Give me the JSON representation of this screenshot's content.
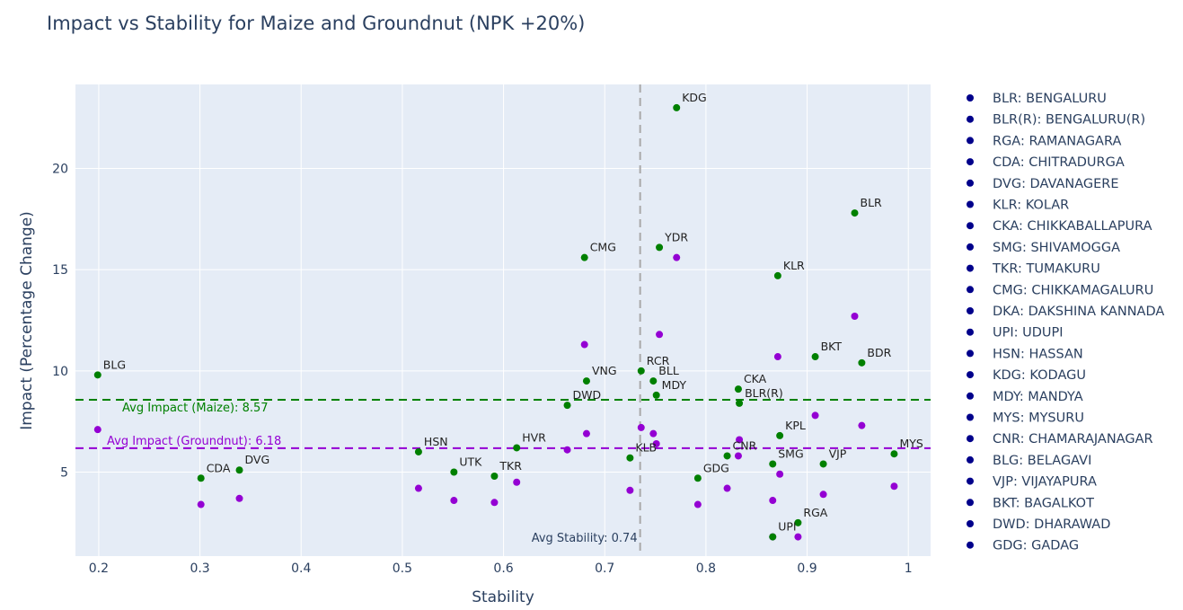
{
  "chart_data": {
    "type": "scatter",
    "title": "Impact vs Stability for Maize and Groundnut (NPK +20%)",
    "xlabel": "Stability",
    "ylabel": "Impact (Percentage Change)",
    "xlim": [
      0.177,
      1.022
    ],
    "ylim": [
      0.85,
      24.15
    ],
    "xticks": [
      0.2,
      0.3,
      0.4,
      0.5,
      0.6,
      0.7,
      0.8,
      0.9,
      1
    ],
    "xtick_labels": [
      "0.2",
      "0.3",
      "0.4",
      "0.5",
      "0.6",
      "0.7",
      "0.8",
      "0.9",
      "1"
    ],
    "yticks": [
      5,
      10,
      15,
      20
    ],
    "ytick_labels": [
      "5",
      "10",
      "15",
      "20"
    ],
    "grid": true,
    "legend_position": "right",
    "colors": {
      "maize": "#008000",
      "groundnut": "#9400d3",
      "legend_marker": "#00008b",
      "plot_bg": "#e5ecf6",
      "grid": "#ffffff",
      "avg_stability_line": "#a9a9a9"
    },
    "series": [
      {
        "key": "maize",
        "points": [
          {
            "code": "BLR",
            "x": 0.947,
            "y": 17.8
          },
          {
            "code": "BLR(R)",
            "x": 0.833,
            "y": 8.4
          },
          {
            "code": "RGA",
            "x": 0.891,
            "y": 2.5
          },
          {
            "code": "CDA",
            "x": 0.301,
            "y": 4.7
          },
          {
            "code": "DVG",
            "x": 0.339,
            "y": 5.1
          },
          {
            "code": "KLR",
            "x": 0.871,
            "y": 14.7
          },
          {
            "code": "CKA",
            "x": 0.832,
            "y": 9.1
          },
          {
            "code": "SMG",
            "x": 0.866,
            "y": 5.4
          },
          {
            "code": "TKR",
            "x": 0.591,
            "y": 4.8
          },
          {
            "code": "CMG",
            "x": 0.68,
            "y": 15.6
          },
          {
            "code": "UPI",
            "x": 0.866,
            "y": 1.8
          },
          {
            "code": "HSN",
            "x": 0.516,
            "y": 6.0
          },
          {
            "code": "KDG",
            "x": 0.771,
            "y": 23.0
          },
          {
            "code": "MDY",
            "x": 0.751,
            "y": 8.8
          },
          {
            "code": "MYS",
            "x": 0.986,
            "y": 5.9
          },
          {
            "code": "CNR",
            "x": 0.821,
            "y": 5.8
          },
          {
            "code": "BLG",
            "x": 0.199,
            "y": 9.8
          },
          {
            "code": "VJP",
            "x": 0.916,
            "y": 5.4
          },
          {
            "code": "BKT",
            "x": 0.908,
            "y": 10.7
          },
          {
            "code": "DWD",
            "x": 0.663,
            "y": 8.3
          },
          {
            "code": "GDG",
            "x": 0.792,
            "y": 4.7
          },
          {
            "code": "YDR",
            "x": 0.754,
            "y": 16.1
          },
          {
            "code": "RCR",
            "x": 0.736,
            "y": 10.0
          },
          {
            "code": "BLL",
            "x": 0.748,
            "y": 9.5
          },
          {
            "code": "KLB",
            "x": 0.725,
            "y": 5.7
          },
          {
            "code": "BDR",
            "x": 0.954,
            "y": 10.4
          },
          {
            "code": "VNG",
            "x": 0.682,
            "y": 9.5
          },
          {
            "code": "UTK",
            "x": 0.551,
            "y": 5.0
          },
          {
            "code": "HVR",
            "x": 0.613,
            "y": 6.2
          },
          {
            "code": "KPL",
            "x": 0.873,
            "y": 6.8
          }
        ]
      },
      {
        "key": "groundnut",
        "points": [
          {
            "x": 0.947,
            "y": 12.7
          },
          {
            "x": 0.833,
            "y": 6.6
          },
          {
            "x": 0.891,
            "y": 1.8
          },
          {
            "x": 0.301,
            "y": 3.4
          },
          {
            "x": 0.339,
            "y": 3.7
          },
          {
            "x": 0.871,
            "y": 10.7
          },
          {
            "x": 0.832,
            "y": 5.8
          },
          {
            "x": 0.866,
            "y": 3.6
          },
          {
            "x": 0.591,
            "y": 3.5
          },
          {
            "x": 0.68,
            "y": 11.3
          },
          {
            "x": 0.866,
            "y": 1.8
          },
          {
            "x": 0.516,
            "y": 4.2
          },
          {
            "x": 0.771,
            "y": 15.6
          },
          {
            "x": 0.751,
            "y": 6.4
          },
          {
            "x": 0.986,
            "y": 4.3
          },
          {
            "x": 0.821,
            "y": 4.2
          },
          {
            "x": 0.199,
            "y": 7.1
          },
          {
            "x": 0.916,
            "y": 3.9
          },
          {
            "x": 0.908,
            "y": 7.8
          },
          {
            "x": 0.663,
            "y": 6.1
          },
          {
            "x": 0.792,
            "y": 3.4
          },
          {
            "x": 0.754,
            "y": 11.8
          },
          {
            "x": 0.736,
            "y": 7.2
          },
          {
            "x": 0.748,
            "y": 6.9
          },
          {
            "x": 0.725,
            "y": 4.1
          },
          {
            "x": 0.954,
            "y": 7.3
          },
          {
            "x": 0.682,
            "y": 6.9
          },
          {
            "x": 0.551,
            "y": 3.6
          },
          {
            "x": 0.613,
            "y": 4.5
          },
          {
            "x": 0.873,
            "y": 4.9
          }
        ]
      }
    ],
    "reference_lines": [
      {
        "key": "avg_maize",
        "axis": "y",
        "value": 8.57,
        "label": "Avg Impact (Maize): 8.57",
        "color": "#008000"
      },
      {
        "key": "avg_groundnut",
        "axis": "y",
        "value": 6.18,
        "label": "Avg Impact (Groundnut): 6.18",
        "color": "#9400d3"
      },
      {
        "key": "avg_stability",
        "axis": "x",
        "value": 0.735,
        "label": "Avg Stability: 0.74",
        "color": "#a9a9a9"
      }
    ],
    "legend": [
      "BLR: BENGALURU",
      "BLR(R): BENGALURU(R)",
      "RGA: RAMANAGARA",
      "CDA: CHITRADURGA",
      "DVG: DAVANAGERE",
      "KLR: KOLAR",
      "CKA: CHIKKABALLAPURA",
      "SMG: SHIVAMOGGA",
      "TKR: TUMAKURU",
      "CMG: CHIKKAMAGALURU",
      "DKA: DAKSHINA KANNADA",
      "UPI: UDUPI",
      "HSN: HASSAN",
      "KDG: KODAGU",
      "MDY: MANDYA",
      "MYS: MYSURU",
      "CNR: CHAMARAJANAGAR",
      "BLG: BELAGAVI",
      "VJP: VIJAYAPURA",
      "BKT: BAGALKOT",
      "DWD: DHARAWAD",
      "GDG: GADAG"
    ]
  }
}
